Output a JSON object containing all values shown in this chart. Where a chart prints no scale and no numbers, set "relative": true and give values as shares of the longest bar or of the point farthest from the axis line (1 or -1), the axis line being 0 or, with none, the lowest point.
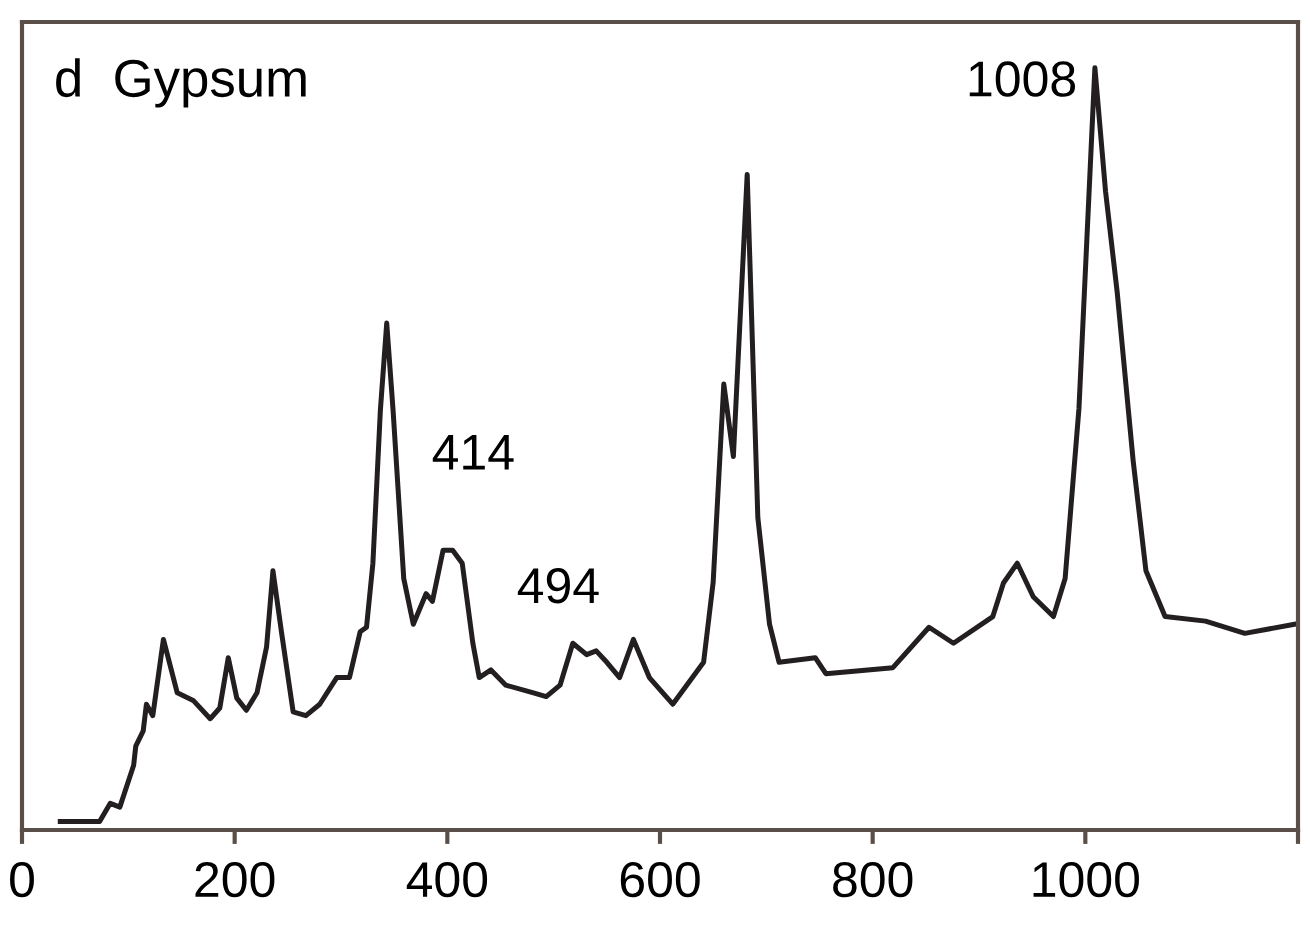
{
  "chart_data": {
    "type": "line",
    "title": "d  Gypsum",
    "relative": true,
    "xlim": [
      0,
      1200
    ],
    "xticks": [
      0,
      200,
      400,
      600,
      800,
      1000,
      {
        "value": 1200,
        "label": null
      }
    ],
    "grid": false,
    "legend": false,
    "series": [
      {
        "color": "#231f20",
        "line_style": "solid",
        "marker": "none",
        "x": [
          36,
          73,
          83,
          92,
          105,
          107,
          114,
          117,
          123,
          133,
          146,
          161,
          177,
          186,
          194,
          202,
          211,
          221,
          230,
          236,
          244,
          255,
          267,
          280,
          296,
          308,
          318,
          324,
          330,
          337,
          343,
          349,
          359,
          368,
          380,
          386,
          396,
          405,
          414,
          424,
          430,
          441,
          455,
          481,
          493,
          506,
          518,
          531,
          540,
          550,
          562,
          575,
          590,
          612,
          641,
          650,
          660,
          669,
          682,
          692,
          703,
          712,
          746,
          756,
          819,
          853,
          876,
          913,
          923,
          936,
          951,
          970,
          981,
          994,
          1009,
          1019,
          1030,
          1045,
          1057,
          1075,
          1113,
          1150,
          1197
        ],
        "values": [
          0.011,
          0.011,
          0.035,
          0.03,
          0.085,
          0.11,
          0.13,
          0.165,
          0.15,
          0.25,
          0.18,
          0.17,
          0.146,
          0.16,
          0.226,
          0.173,
          0.157,
          0.18,
          0.24,
          0.34,
          0.26,
          0.155,
          0.15,
          0.165,
          0.2,
          0.2,
          0.26,
          0.266,
          0.35,
          0.55,
          0.665,
          0.55,
          0.33,
          0.27,
          0.31,
          0.3,
          0.367,
          0.367,
          0.35,
          0.245,
          0.2,
          0.21,
          0.19,
          0.18,
          0.175,
          0.19,
          0.245,
          0.23,
          0.235,
          0.22,
          0.2,
          0.25,
          0.2,
          0.165,
          0.22,
          0.325,
          0.585,
          0.49,
          0.86,
          0.41,
          0.27,
          0.22,
          0.226,
          0.205,
          0.213,
          0.266,
          0.245,
          0.28,
          0.324,
          0.35,
          0.306,
          0.28,
          0.33,
          0.553,
          1.0,
          0.838,
          0.705,
          0.484,
          0.34,
          0.28,
          0.274,
          0.258,
          0.27
        ]
      }
    ],
    "annotations": [
      {
        "text": "414",
        "x": 414,
        "y": 0.35
      },
      {
        "text": "494",
        "x": 494,
        "y": 0.175
      },
      {
        "text": "1008",
        "x": 1008,
        "y": 1.0
      }
    ]
  }
}
